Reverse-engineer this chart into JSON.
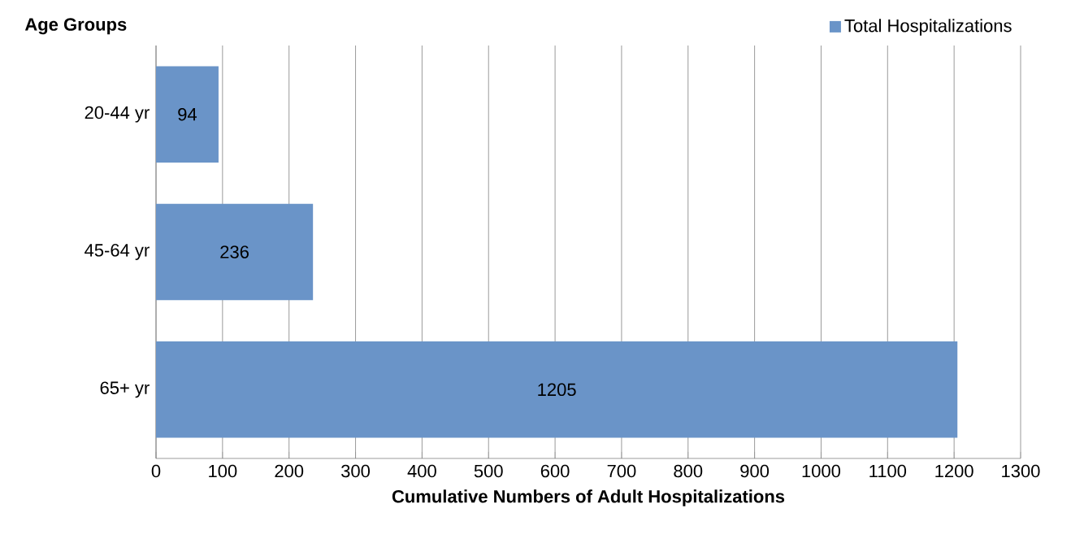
{
  "chart_data": {
    "type": "bar",
    "orientation": "horizontal",
    "ylabel": "Age Groups",
    "xlabel": "Cumulative Numbers of Adult Hospitalizations",
    "categories": [
      "20-44 yr",
      "45-64 yr",
      "65+ yr"
    ],
    "series": [
      {
        "name": "Total Hospitalizations",
        "color": "#6a94c8",
        "values": [
          94,
          236,
          1205
        ]
      }
    ],
    "xlim": [
      0,
      1300
    ],
    "xticks": [
      0,
      100,
      200,
      300,
      400,
      500,
      600,
      700,
      800,
      900,
      1000,
      1100,
      1200,
      1300
    ],
    "grid": "x",
    "legend": "top right",
    "data_labels": true
  }
}
